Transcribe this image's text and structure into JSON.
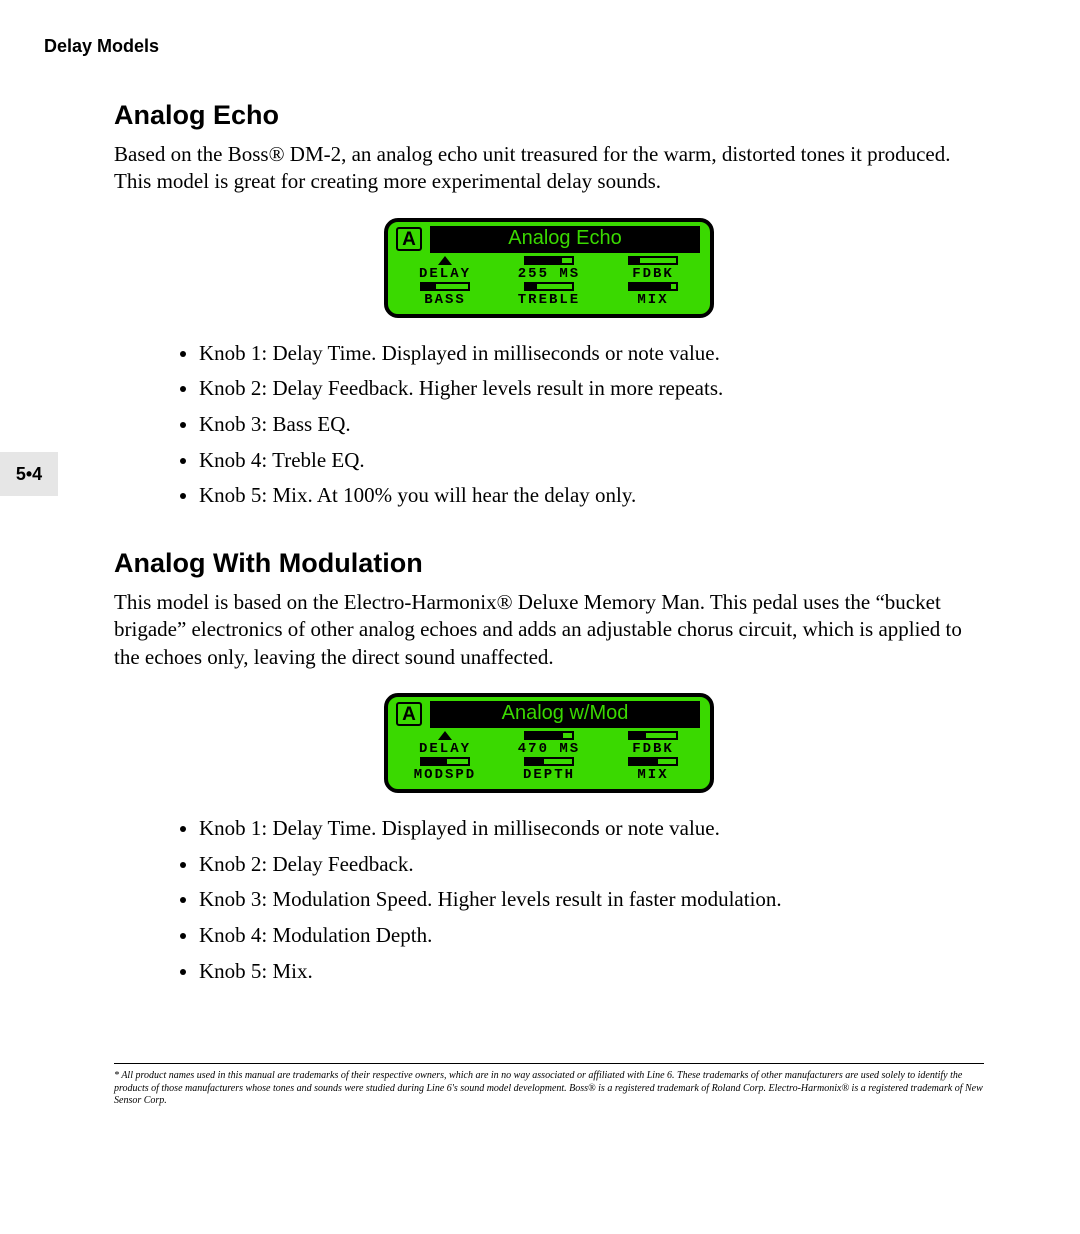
{
  "header": {
    "title": "Delay Models"
  },
  "side_tab": "5•4",
  "colors": {
    "lcd_bg": "#3ad900",
    "lcd_border": "#000000",
    "lcd_title_bg": "#000000",
    "lcd_title_fg": "#3ad900",
    "page_bg": "#ffffff",
    "sidetab_bg": "#e6e6e6"
  },
  "sections": [
    {
      "title": "Analog Echo",
      "paragraph": "Based on the Boss® DM-2, an analog echo unit  treasured for the warm, distorted tones it produced.  This model is great for creating more experimental delay sounds.",
      "lcd": {
        "badge": "A",
        "title": "Analog Echo",
        "row1": [
          {
            "indicator": "arrow",
            "label": "DELAY"
          },
          {
            "indicator": "bar",
            "fill_pct": 78,
            "label": "255 MS"
          },
          {
            "indicator": "bar",
            "fill_pct": 22,
            "label": "FDBK"
          }
        ],
        "row2": [
          {
            "indicator": "bar",
            "fill_pct": 30,
            "label": "BASS"
          },
          {
            "indicator": "bar",
            "fill_pct": 24,
            "label": "TREBLE"
          },
          {
            "indicator": "bar",
            "fill_pct": 90,
            "label": "MIX"
          }
        ]
      },
      "bullets": [
        "Knob 1: Delay Time. Displayed in milliseconds or note value.",
        "Knob 2: Delay Feedback.  Higher levels result in more repeats.",
        "Knob 3: Bass EQ.",
        "Knob 4: Treble EQ.",
        "Knob 5: Mix. At 100% you will hear the delay only."
      ]
    },
    {
      "title": "Analog With Modulation",
      "paragraph": "This model is based on the Electro-Harmonix® Deluxe Memory Man. This pedal uses the “bucket brigade” electronics of other analog echoes and adds an adjustable chorus circuit, which is applied to the echoes only, leaving the direct sound unaffected.",
      "lcd": {
        "badge": "A",
        "title": "Analog w/Mod",
        "row1": [
          {
            "indicator": "arrow",
            "label": "DELAY"
          },
          {
            "indicator": "bar",
            "fill_pct": 80,
            "label": "470 MS"
          },
          {
            "indicator": "bar",
            "fill_pct": 35,
            "label": "FDBK"
          }
        ],
        "row2": [
          {
            "indicator": "bar",
            "fill_pct": 55,
            "label": "MODSPD"
          },
          {
            "indicator": "bar",
            "fill_pct": 40,
            "label": "DEPTH"
          },
          {
            "indicator": "bar",
            "fill_pct": 60,
            "label": "MIX"
          }
        ]
      },
      "bullets": [
        "Knob 1: Delay Time. Displayed in milliseconds or note value.",
        "Knob 2: Delay Feedback.",
        "Knob 3: Modulation Speed.  Higher levels result in faster modulation.",
        "Knob 4: Modulation Depth.",
        "Knob 5: Mix."
      ]
    }
  ],
  "footnote": "* All product names used in this manual are trademarks of their respective owners, which are in no way associated or affiliated with Line 6.  These trademarks of other manufacturers are used solely to identify the products of those manufacturers whose tones and sounds were studied during Line 6's sound model development.  Boss® is a registered trademark of Roland Corp.  Electro-Harmonix® is a registered trademark of New Sensor Corp."
}
